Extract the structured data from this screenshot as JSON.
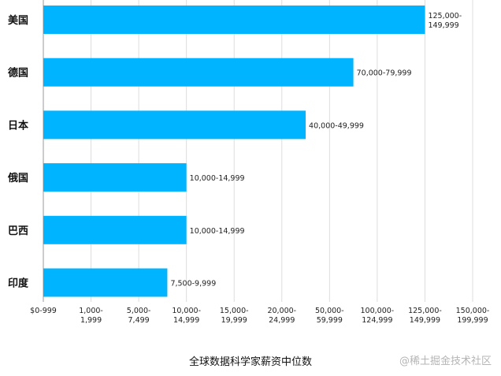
{
  "chart_data": {
    "type": "bar",
    "orientation": "horizontal",
    "title": "全球数据科学家薪资中位数",
    "categories": [
      "美国",
      "德国",
      "日本",
      "俄国",
      "巴西",
      "印度"
    ],
    "values": [
      8,
      6.5,
      5.5,
      3,
      3,
      2.6
    ],
    "data_labels": [
      [
        "125,000-",
        "149,999"
      ],
      [
        "70,000-79,999"
      ],
      [
        "40,000-49,999"
      ],
      [
        "10,000-14,999"
      ],
      [
        "10,000-14,999"
      ],
      [
        "7,500-9,999"
      ]
    ],
    "x_ticks": [
      [
        "$0-999"
      ],
      [
        "1,000-",
        "1,999"
      ],
      [
        "5,000-",
        "7,499"
      ],
      [
        "10,000-",
        "14,999"
      ],
      [
        "15,000-",
        "19,999"
      ],
      [
        "20,000-",
        "24,999"
      ],
      [
        "50,000-",
        "59,999"
      ],
      [
        "100,000-",
        "124,999"
      ],
      [
        "125,000-",
        "149,999"
      ],
      [
        "150,000-",
        "199,999"
      ]
    ],
    "xlim": [
      0,
      9
    ],
    "grid": true,
    "colors": {
      "bar": "#00B4FF",
      "grid": "#dddddd"
    }
  },
  "watermark": "@稀土掘金技术社区"
}
